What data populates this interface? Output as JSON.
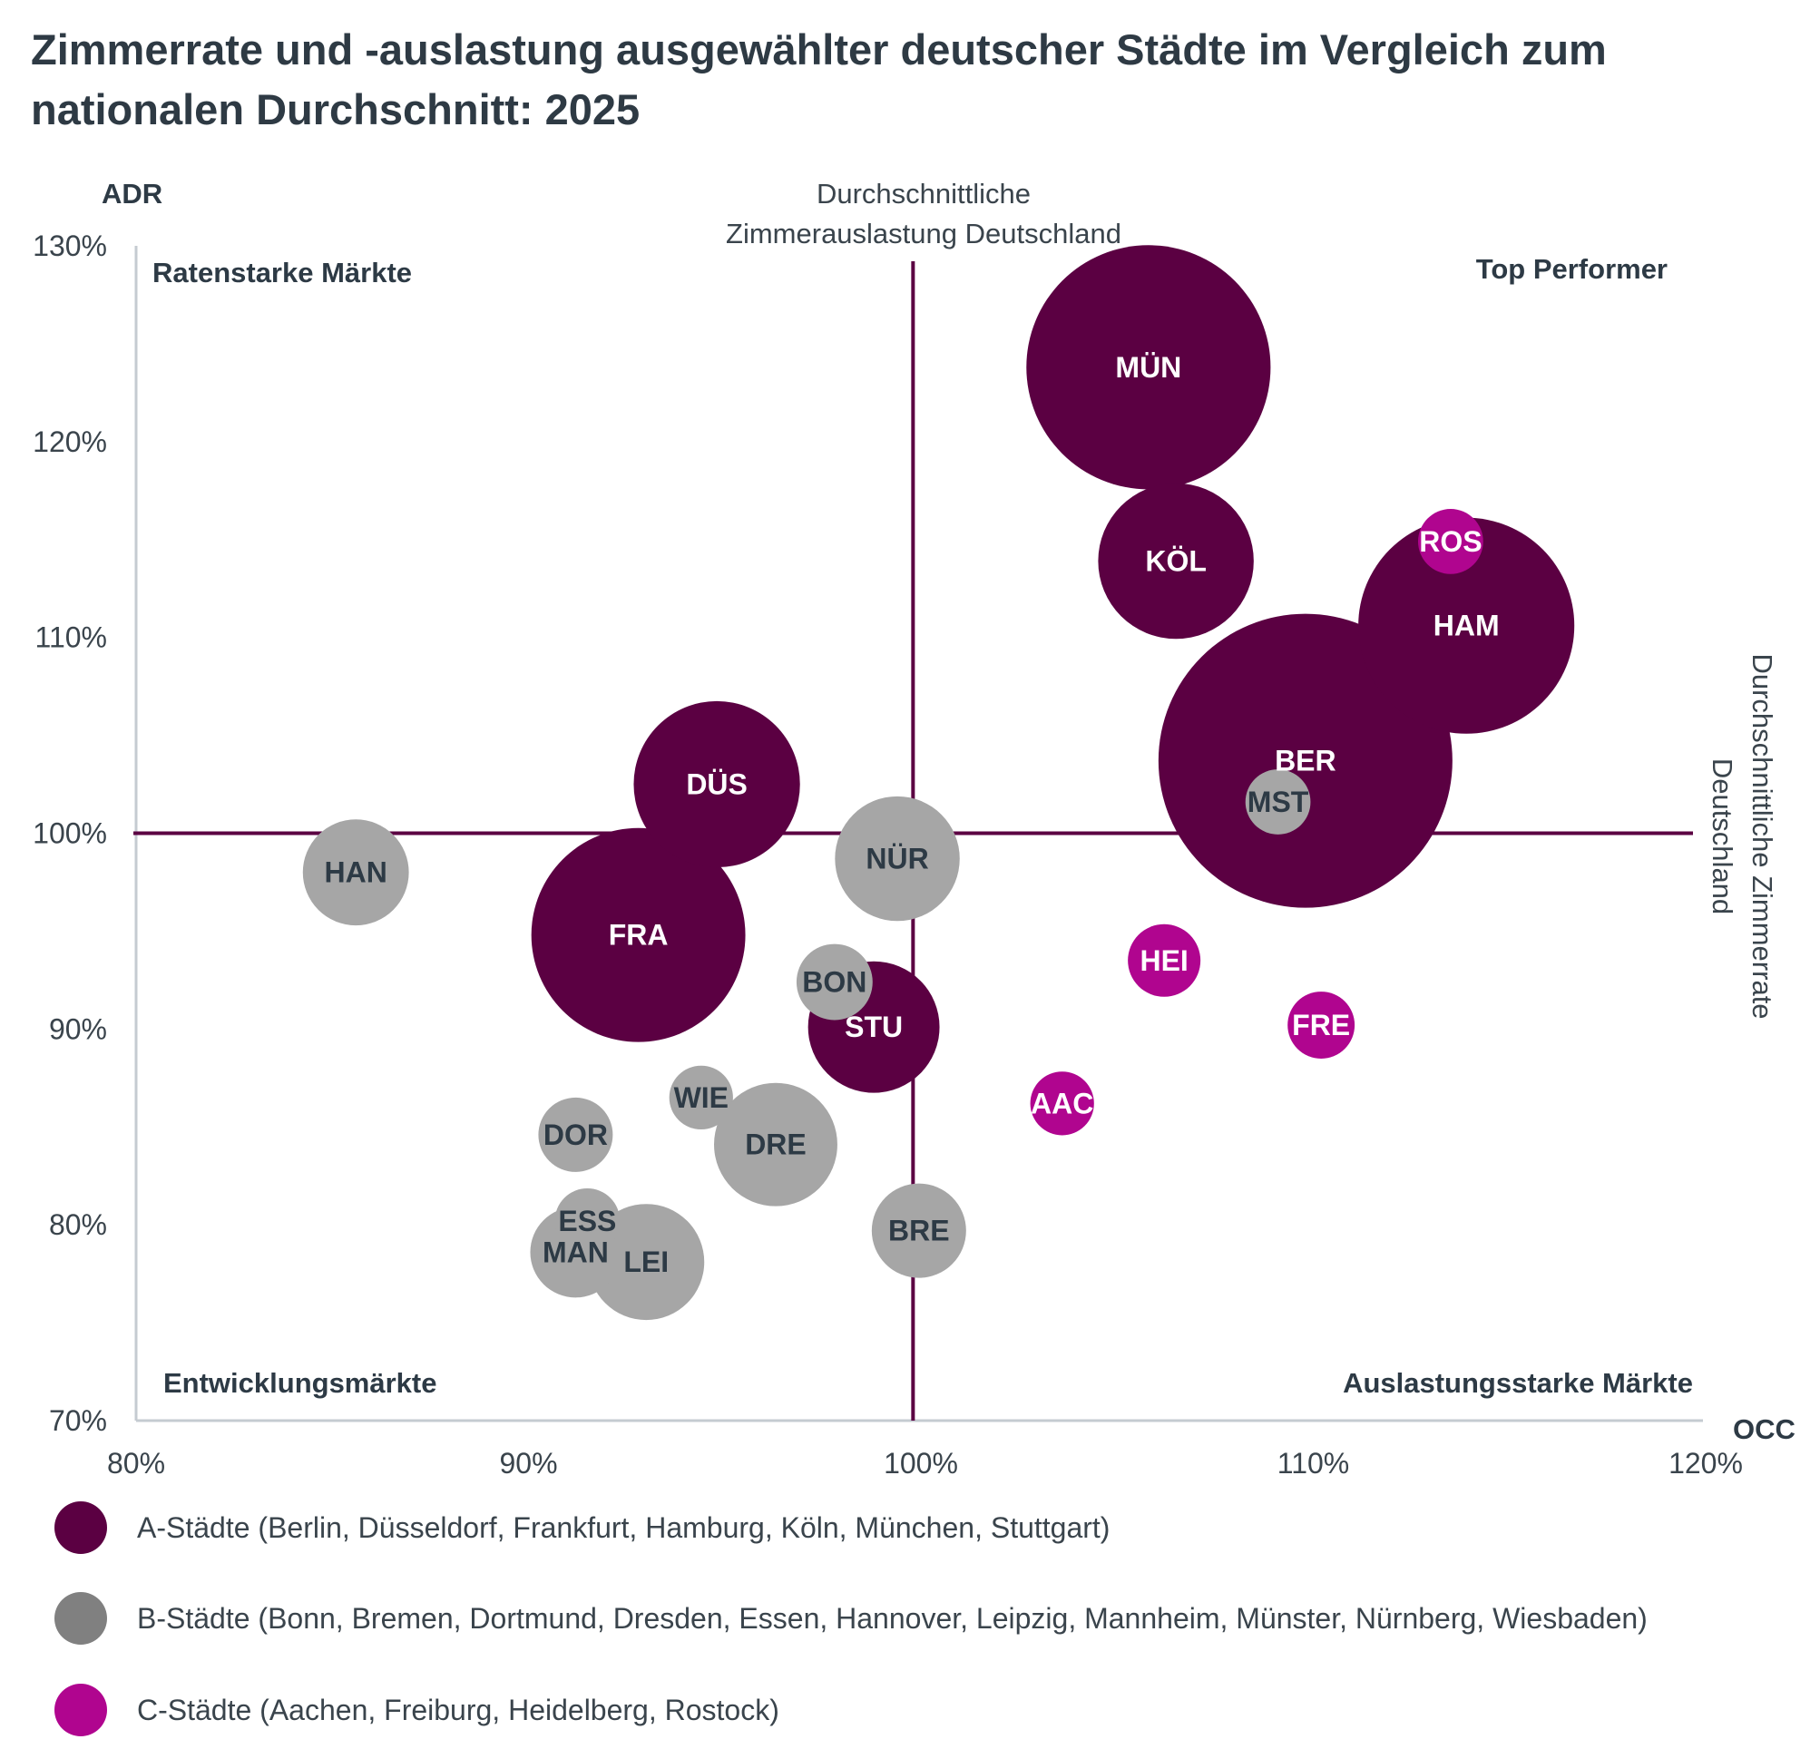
{
  "title": "Zimmerrate und -auslastung ausgewählter deutscher Städte im Vergleich zum nationalen Durchschnitt: 2025",
  "colors": {
    "A": "#5b0042",
    "B": "#a6a6a6",
    "C": "#b0058f",
    "label_on_dark": "#ffffff",
    "label_on_gray": "#2d3a45",
    "reference_line": "#5b0042",
    "axis_line": "#c5cbd1",
    "legend_B": "#808080"
  },
  "chart_data": {
    "type": "bubble",
    "title": "Zimmerrate und -auslastung ausgewählter deutscher Städte im Vergleich zum nationalen Durchschnitt: 2025",
    "xlabel": "OCC",
    "ylabel": "ADR",
    "xlim": [
      80,
      120
    ],
    "ylim": [
      70,
      130
    ],
    "x_ticks": [
      "80%",
      "90%",
      "100%",
      "110%",
      "120%"
    ],
    "y_ticks": [
      "130%",
      "120%",
      "110%",
      "100%",
      "90%",
      "80%",
      "70%"
    ],
    "x_tick_values": [
      80,
      90,
      100,
      110,
      120
    ],
    "y_tick_values": [
      130,
      120,
      110,
      100,
      90,
      80,
      70
    ],
    "grid": false,
    "size_note": "relative bubble area index (Berlin = 100)",
    "reference_lines": {
      "vertical": {
        "value": 99.8,
        "label_lines": [
          "Durchschnittliche",
          "Zimmerauslastung  Deutschland"
        ]
      },
      "horizontal": {
        "value": 100,
        "label_lines": [
          "Durchschnittliche Zimmerrate",
          "Deutschland"
        ]
      }
    },
    "quadrants": {
      "top_left": "Ratenstarke Märkte",
      "top_right": "Top Performer",
      "bottom_left": "Entwicklungsmärkte",
      "bottom_right": "Auslastungsstarke Märkte"
    },
    "series": [
      {
        "name": "A-Städte (Berlin, Düsseldorf, Frankfurt, Hamburg, Köln, München, Stuttgart)",
        "group": "A",
        "points": [
          {
            "label": "BER",
            "occ": 109.8,
            "adr": 103.7,
            "size": 100
          },
          {
            "label": "HAM",
            "occ": 113.9,
            "adr": 110.6,
            "size": 54
          },
          {
            "label": "MÜN",
            "occ": 105.8,
            "adr": 123.8,
            "size": 69
          },
          {
            "label": "FRA",
            "occ": 92.8,
            "adr": 94.8,
            "size": 53
          },
          {
            "label": "DÜS",
            "occ": 94.8,
            "adr": 102.5,
            "size": 32
          },
          {
            "label": "KÖL",
            "occ": 106.5,
            "adr": 113.9,
            "size": 28
          },
          {
            "label": "STU",
            "occ": 98.8,
            "adr": 90.1,
            "size": 20
          }
        ]
      },
      {
        "name": "B-Städte (Bonn, Bremen, Dortmund, Dresden, Essen, Hannover, Leipzig, Mannheim, Münster, Nürnberg, Wiesbaden)",
        "group": "B",
        "points": [
          {
            "label": "HAN",
            "occ": 85.6,
            "adr": 98.0,
            "size": 13
          },
          {
            "label": "NÜR",
            "occ": 99.4,
            "adr": 98.7,
            "size": 18
          },
          {
            "label": "BON",
            "occ": 97.8,
            "adr": 92.4,
            "size": 6.7
          },
          {
            "label": "WIE",
            "occ": 94.4,
            "adr": 86.5,
            "size": 4.7
          },
          {
            "label": "DOR",
            "occ": 91.2,
            "adr": 84.6,
            "size": 6.4
          },
          {
            "label": "DRE",
            "occ": 96.3,
            "adr": 84.1,
            "size": 17.6
          },
          {
            "label": "LEI",
            "occ": 93.0,
            "adr": 78.1,
            "size": 15.6
          },
          {
            "label": "MAN",
            "occ": 91.2,
            "adr": 78.6,
            "size": 9.5
          },
          {
            "label": "ESS",
            "occ": 91.5,
            "adr": 80.2,
            "size": 4.9
          },
          {
            "label": "BRE",
            "occ": 99.95,
            "adr": 79.7,
            "size": 10.3
          },
          {
            "label": "MST",
            "occ": 109.1,
            "adr": 101.6,
            "size": 4.9
          }
        ]
      },
      {
        "name": "C-Städte (Aachen, Freiburg, Heidelberg, Rostock)",
        "group": "C",
        "points": [
          {
            "label": "ROS",
            "occ": 113.5,
            "adr": 114.9,
            "size": 4.9
          },
          {
            "label": "HEI",
            "occ": 106.2,
            "adr": 93.5,
            "size": 6.1
          },
          {
            "label": "FRE",
            "occ": 110.2,
            "adr": 90.2,
            "size": 5.2
          },
          {
            "label": "AAC",
            "occ": 103.6,
            "adr": 86.2,
            "size": 4.7
          }
        ]
      }
    ],
    "legend": {
      "placement": "bottom-left",
      "items": [
        {
          "group": "A",
          "label": "A-Städte (Berlin, Düsseldorf, Frankfurt, Hamburg, Köln, München, Stuttgart)"
        },
        {
          "group": "B",
          "label": "B-Städte (Bonn, Bremen, Dortmund, Dresden, Essen, Hannover, Leipzig, Mannheim, Münster, Nürnberg, Wiesbaden)"
        },
        {
          "group": "C",
          "label": "C-Städte (Aachen, Freiburg, Heidelberg, Rostock)"
        }
      ]
    }
  }
}
